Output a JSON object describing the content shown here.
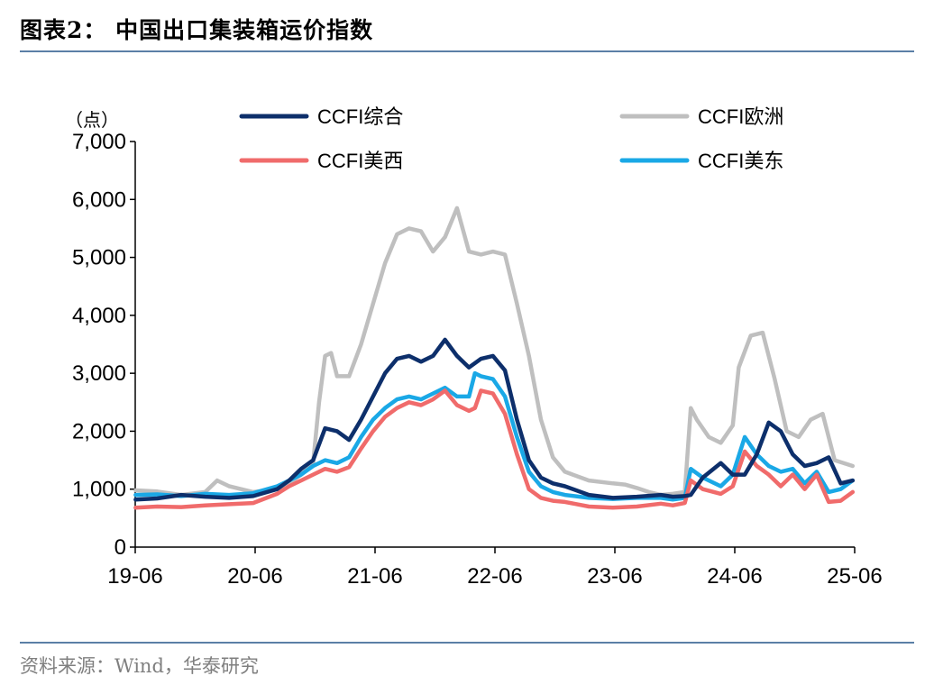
{
  "header": {
    "title": "图表2：  中国出口集装箱运价指数"
  },
  "footer": {
    "source": "资料来源：Wind，华泰研究"
  },
  "chart_data": {
    "type": "line",
    "unit": "（点）",
    "ylim": [
      0,
      7000
    ],
    "yticks": [
      0,
      1000,
      2000,
      3000,
      4000,
      5000,
      6000,
      7000
    ],
    "ytick_labels": [
      "0",
      "1,000",
      "2,000",
      "3,000",
      "4,000",
      "5,000",
      "6,000",
      "7,000"
    ],
    "xlim": [
      2019.4167,
      2025.4167
    ],
    "xticks": [
      2019.4167,
      2020.4167,
      2021.4167,
      2022.4167,
      2023.4167,
      2024.4167,
      2025.4167
    ],
    "xtick_labels": [
      "19-06",
      "20-06",
      "21-06",
      "22-06",
      "23-06",
      "24-06",
      "25-06"
    ],
    "grid": false,
    "legend_position": "top",
    "series": [
      {
        "name": "CCFI综合",
        "color": "#0d2f6b",
        "x": [
          2019.42,
          2019.6,
          2019.8,
          2020.0,
          2020.2,
          2020.4,
          2020.6,
          2020.7,
          2020.8,
          2020.9,
          2021.0,
          2021.1,
          2021.2,
          2021.3,
          2021.4,
          2021.5,
          2021.6,
          2021.7,
          2021.8,
          2021.9,
          2022.0,
          2022.1,
          2022.2,
          2022.3,
          2022.4,
          2022.5,
          2022.6,
          2022.7,
          2022.8,
          2022.9,
          2023.0,
          2023.2,
          2023.4,
          2023.6,
          2023.8,
          2023.9,
          2024.0,
          2024.05,
          2024.15,
          2024.3,
          2024.4,
          2024.5,
          2024.6,
          2024.7,
          2024.8,
          2024.9,
          2025.0,
          2025.1,
          2025.2,
          2025.3,
          2025.4
        ],
        "y": [
          820,
          840,
          900,
          870,
          850,
          880,
          1000,
          1150,
          1350,
          1500,
          2050,
          2000,
          1850,
          2200,
          2600,
          3000,
          3250,
          3300,
          3200,
          3300,
          3580,
          3300,
          3100,
          3250,
          3300,
          3050,
          2200,
          1500,
          1200,
          1100,
          1050,
          900,
          850,
          870,
          900,
          870,
          880,
          900,
          1200,
          1450,
          1250,
          1250,
          1600,
          2150,
          2000,
          1600,
          1400,
          1450,
          1550,
          1100,
          1150
        ]
      },
      {
        "name": "CCFI欧洲",
        "color": "#bfbfbf",
        "x": [
          2019.42,
          2019.6,
          2019.8,
          2020.0,
          2020.1,
          2020.2,
          2020.4,
          2020.6,
          2020.7,
          2020.8,
          2020.9,
          2020.95,
          2021.0,
          2021.05,
          2021.1,
          2021.2,
          2021.3,
          2021.4,
          2021.5,
          2021.6,
          2021.7,
          2021.8,
          2021.9,
          2022.0,
          2022.1,
          2022.2,
          2022.3,
          2022.4,
          2022.5,
          2022.6,
          2022.7,
          2022.8,
          2022.9,
          2023.0,
          2023.2,
          2023.4,
          2023.5,
          2023.6,
          2023.7,
          2023.8,
          2023.9,
          2024.0,
          2024.05,
          2024.1,
          2024.2,
          2024.3,
          2024.4,
          2024.45,
          2024.55,
          2024.65,
          2024.75,
          2024.85,
          2024.95,
          2025.05,
          2025.15,
          2025.25,
          2025.4
        ],
        "y": [
          980,
          960,
          900,
          950,
          1150,
          1050,
          950,
          1000,
          1100,
          1250,
          1450,
          2500,
          3300,
          3350,
          2950,
          2950,
          3500,
          4200,
          4900,
          5400,
          5500,
          5450,
          5100,
          5350,
          5850,
          5100,
          5050,
          5100,
          5050,
          4200,
          3300,
          2200,
          1550,
          1300,
          1150,
          1100,
          1080,
          1020,
          950,
          900,
          920,
          950,
          2400,
          2200,
          1900,
          1800,
          2100,
          3100,
          3650,
          3700,
          2900,
          2000,
          1900,
          2200,
          2300,
          1500,
          1400
        ]
      },
      {
        "name": "CCFI美西",
        "color": "#f06b6b",
        "x": [
          2019.42,
          2019.6,
          2019.8,
          2020.0,
          2020.2,
          2020.4,
          2020.6,
          2020.7,
          2020.8,
          2020.9,
          2021.0,
          2021.1,
          2021.2,
          2021.3,
          2021.4,
          2021.5,
          2021.6,
          2021.7,
          2021.8,
          2021.9,
          2022.0,
          2022.1,
          2022.2,
          2022.25,
          2022.3,
          2022.4,
          2022.5,
          2022.6,
          2022.7,
          2022.8,
          2022.9,
          2023.0,
          2023.2,
          2023.4,
          2023.6,
          2023.8,
          2023.9,
          2024.0,
          2024.05,
          2024.15,
          2024.3,
          2024.4,
          2024.5,
          2024.6,
          2024.7,
          2024.8,
          2024.9,
          2025.0,
          2025.1,
          2025.2,
          2025.3,
          2025.4
        ],
        "y": [
          680,
          700,
          690,
          720,
          740,
          760,
          920,
          1050,
          1150,
          1250,
          1350,
          1300,
          1380,
          1700,
          2000,
          2250,
          2400,
          2500,
          2450,
          2550,
          2700,
          2450,
          2350,
          2400,
          2700,
          2650,
          2300,
          1600,
          1000,
          850,
          800,
          780,
          700,
          680,
          700,
          750,
          720,
          760,
          1150,
          1000,
          920,
          1050,
          1650,
          1400,
          1250,
          1050,
          1250,
          1000,
          1250,
          780,
          800,
          950
        ]
      },
      {
        "name": "CCFI美东",
        "color": "#1aa8e6",
        "x": [
          2019.42,
          2019.6,
          2019.8,
          2020.0,
          2020.2,
          2020.4,
          2020.6,
          2020.7,
          2020.8,
          2020.9,
          2021.0,
          2021.1,
          2021.2,
          2021.3,
          2021.4,
          2021.5,
          2021.6,
          2021.7,
          2021.8,
          2021.9,
          2022.0,
          2022.1,
          2022.2,
          2022.25,
          2022.3,
          2022.4,
          2022.5,
          2022.6,
          2022.7,
          2022.8,
          2022.9,
          2023.0,
          2023.2,
          2023.4,
          2023.6,
          2023.8,
          2023.9,
          2024.0,
          2024.05,
          2024.15,
          2024.3,
          2024.4,
          2024.5,
          2024.6,
          2024.7,
          2024.8,
          2024.9,
          2025.0,
          2025.1,
          2025.2,
          2025.3,
          2025.4
        ],
        "y": [
          900,
          910,
          880,
          920,
          900,
          930,
          1050,
          1150,
          1250,
          1400,
          1500,
          1450,
          1550,
          1900,
          2200,
          2400,
          2550,
          2600,
          2550,
          2650,
          2750,
          2600,
          2600,
          3000,
          2950,
          2900,
          2600,
          1900,
          1300,
          1050,
          950,
          900,
          850,
          830,
          850,
          850,
          820,
          850,
          1350,
          1200,
          1050,
          1250,
          1900,
          1600,
          1400,
          1300,
          1350,
          1100,
          1300,
          950,
          1000,
          1150
        ]
      }
    ]
  }
}
